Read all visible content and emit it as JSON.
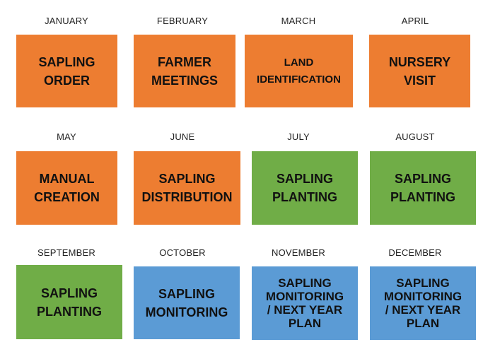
{
  "colors": {
    "orange": "#ED7D31",
    "green": "#70AD47",
    "blue": "#5B9BD5"
  },
  "cells": [
    {
      "month": "JANUARY",
      "activity": "SAPLING\nORDER",
      "color": "orange"
    },
    {
      "month": "FEBRUARY",
      "activity": "FARMER\nMEETINGS",
      "color": "orange"
    },
    {
      "month": "MARCH",
      "activity": "LAND\nIDENTIFICATION",
      "color": "orange"
    },
    {
      "month": "APRIL",
      "activity": "NURSERY\nVISIT",
      "color": "orange"
    },
    {
      "month": "MAY",
      "activity": "MANUAL\nCREATION",
      "color": "orange"
    },
    {
      "month": "JUNE",
      "activity": "SAPLING\nDISTRIBUTION",
      "color": "orange"
    },
    {
      "month": "JULY",
      "activity": "SAPLING\nPLANTING",
      "color": "green"
    },
    {
      "month": "AUGUST",
      "activity": "SAPLING\nPLANTING",
      "color": "green"
    },
    {
      "month": "SEPTEMBER",
      "activity": "SAPLING\nPLANTING",
      "color": "green"
    },
    {
      "month": "OCTOBER",
      "activity": "SAPLING\nMONITORING",
      "color": "blue"
    },
    {
      "month": "NOVEMBER",
      "activity": "SAPLING\nMONITORING\n/ NEXT YEAR\nPLAN",
      "color": "blue"
    },
    {
      "month": "DECEMBER",
      "activity": "SAPLING\nMONITORING\n/ NEXT YEAR\nPLAN",
      "color": "blue"
    }
  ]
}
